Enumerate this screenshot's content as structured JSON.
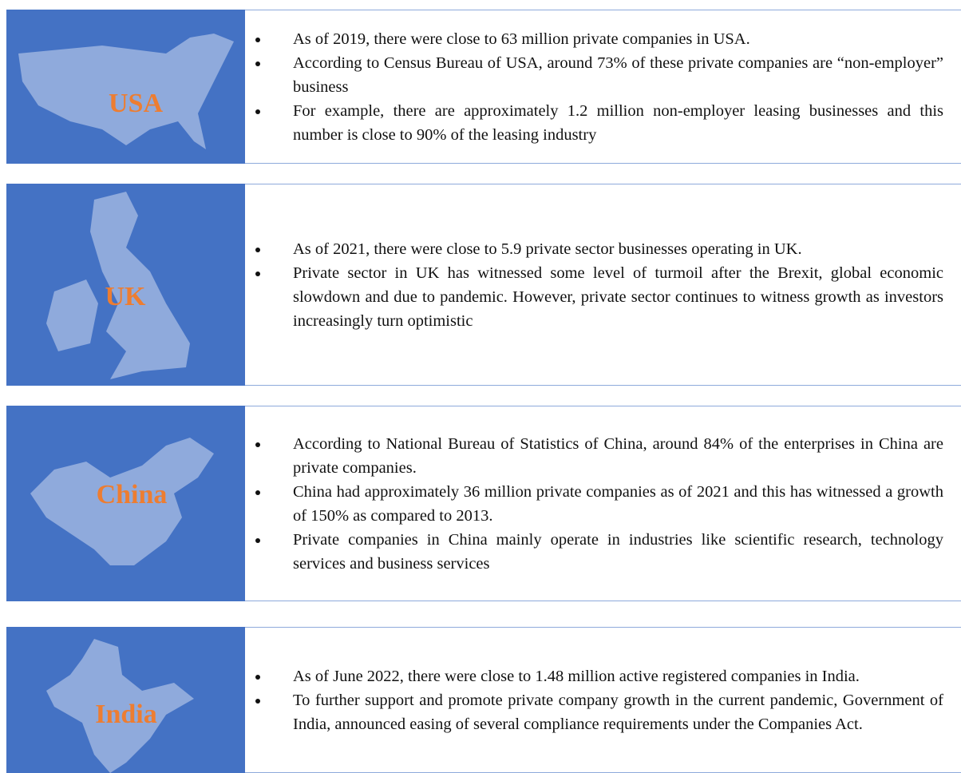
{
  "rows": [
    {
      "label": "USA",
      "bullets": [
        "As of 2019, there were close to 63 million private companies in USA.",
        "According to Census Bureau of USA, around 73% of these private companies are “non-employer” business",
        "For example, there are approximately 1.2 million non-employer leasing businesses  and this number is close to 90% of the leasing industry"
      ]
    },
    {
      "label": "UK",
      "bullets": [
        "As of 2021, there were close to 5.9 private sector businesses operating in UK.",
        "Private sector in UK has witnessed some level of turmoil after the Brexit, global economic slowdown and due to pandemic. However, private sector continues to witness growth as investors increasingly turn optimistic"
      ]
    },
    {
      "label": "China",
      "bullets": [
        "According to National Bureau of Statistics of China, around 84% of the enterprises in China are private companies.",
        "China had approximately 36 million private companies as of 2021 and this has witnessed a growth of 150% as compared to 2013.",
        "Private  companies in China mainly operate in industries like scientific research, technology services and business services"
      ]
    },
    {
      "label": "India",
      "bullets": [
        "As of June 2022, there were close to 1.48 million active registered companies in India.",
        "To further support and promote private company growth in the current pandemic, Government of India, announced easing of several compliance requirements under the Companies Act."
      ]
    }
  ]
}
